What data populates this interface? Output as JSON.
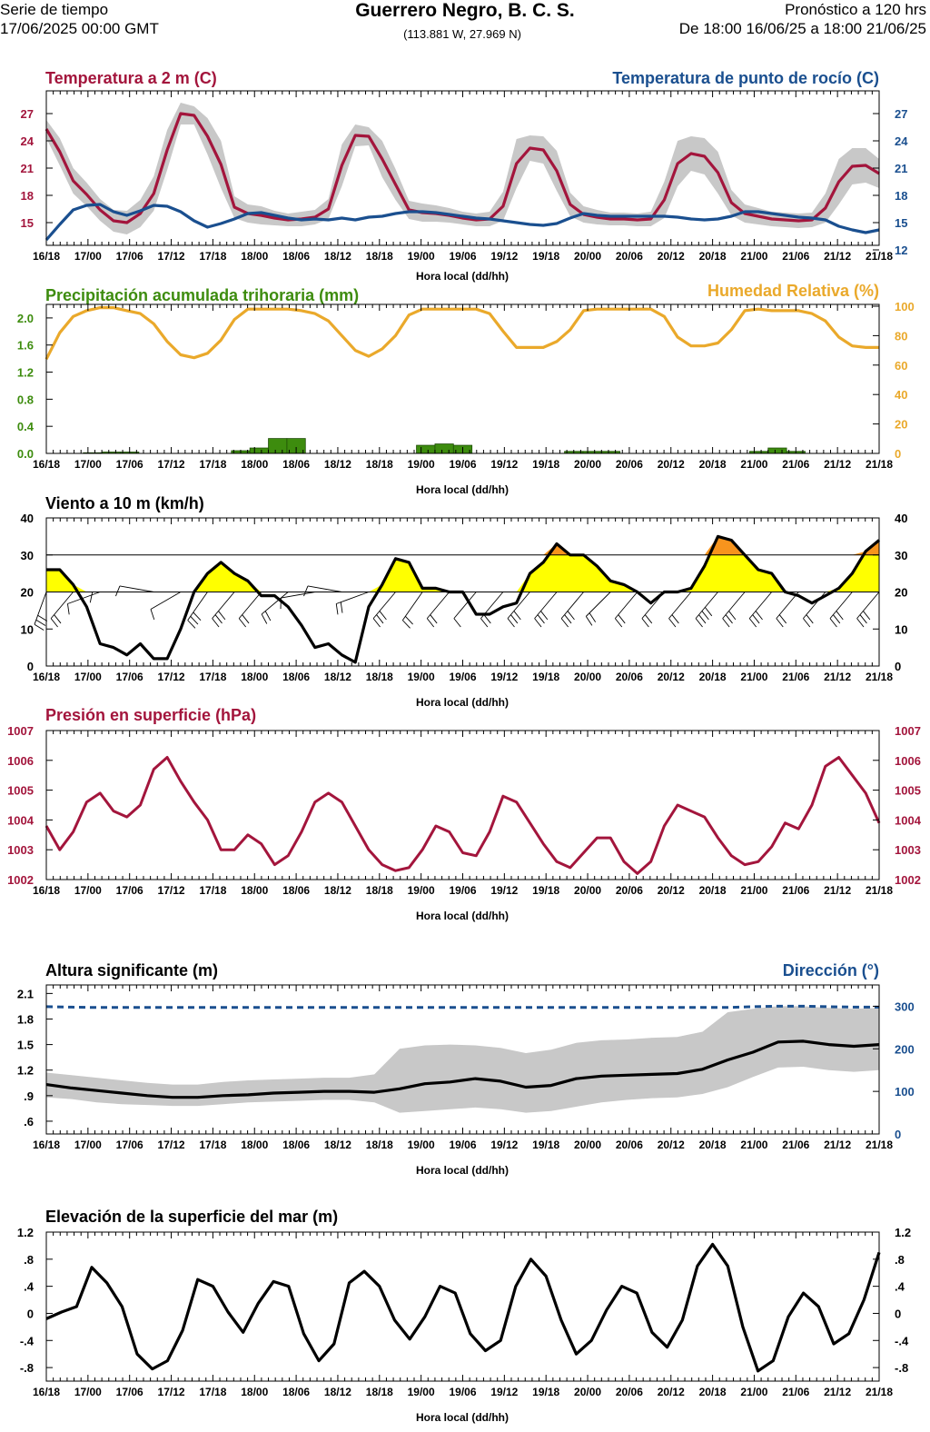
{
  "header": {
    "left_line1": "Serie de tiempo",
    "left_line2": "17/06/2025 00:00 GMT",
    "title": "Guerrero Negro, B. C. S.",
    "subtitle": "(113.881 W, 27.969 N)",
    "right_line1": "Pronóstico a 120 hrs",
    "right_line2": "De 18:00 16/06/25 a 18:00 21/06/25"
  },
  "colors": {
    "temperature": "#a3153c",
    "dewpoint": "#1a4f8f",
    "precip": "#3d8c0e",
    "humidity": "#eaa92b",
    "wind_fill": "#ffff00",
    "wind_fill_high": "#f7941d",
    "band": "#c8c8c8",
    "black": "#000000"
  },
  "chart_data": [
    {
      "type": "line",
      "title": "Temperatura a 2 m (C)",
      "title_right": "Temperatura de punto de rocío (C)",
      "xlabel": "Hora local (dd/hh)",
      "x_ticks": [
        "16/18",
        "17/00",
        "17/06",
        "17/12",
        "17/18",
        "18/00",
        "18/06",
        "18/12",
        "18/18",
        "19/00",
        "19/06",
        "19/12",
        "19/18",
        "20/00",
        "20/06",
        "20/12",
        "20/18",
        "21/00",
        "21/06",
        "21/12",
        "21/18"
      ],
      "ylim": [
        12.5,
        29.5
      ],
      "yticks_left": [
        15,
        18,
        21,
        24,
        27
      ],
      "yticks_right": [
        12,
        15,
        18,
        21,
        24,
        27
      ],
      "series": [
        {
          "name": "Temperatura a 2 m (C)",
          "values": [
            25.3,
            22.8,
            19.6,
            18.1,
            16.4,
            15.2,
            15.0,
            16.0,
            18.2,
            23.0,
            27.0,
            26.8,
            24.5,
            21.4,
            16.7,
            16.0,
            15.8,
            15.5,
            15.3,
            15.4,
            15.6,
            16.5,
            21.3,
            24.6,
            24.5,
            22.0,
            19.2,
            16.4,
            16.1,
            16.0,
            15.8,
            15.5,
            15.3,
            15.4,
            16.8,
            21.5,
            23.2,
            23.0,
            20.7,
            17.0,
            15.9,
            15.6,
            15.4,
            15.4,
            15.3,
            15.4,
            17.5,
            21.5,
            22.6,
            22.3,
            20.5,
            17.2,
            16.0,
            15.7,
            15.4,
            15.3,
            15.2,
            15.3,
            16.6,
            19.5,
            21.2,
            21.3,
            20.4
          ],
          "band_low": [
            24.3,
            21.3,
            18.2,
            16.8,
            15.2,
            14.0,
            13.7,
            14.5,
            16.3,
            20.8,
            25.8,
            25.8,
            22.5,
            18.8,
            15.5,
            15.0,
            14.8,
            14.7,
            14.6,
            14.6,
            14.8,
            15.4,
            19.0,
            23.4,
            23.5,
            20.0,
            17.5,
            15.4,
            15.1,
            15.1,
            15.0,
            14.8,
            14.6,
            14.6,
            15.2,
            18.8,
            21.8,
            21.5,
            18.5,
            15.7,
            15.0,
            14.8,
            14.7,
            14.7,
            14.6,
            14.6,
            15.5,
            19.0,
            20.7,
            20.3,
            18.2,
            15.8,
            15.0,
            14.8,
            14.6,
            14.5,
            14.4,
            14.5,
            15.0,
            17.0,
            19.2,
            19.4,
            18.8
          ],
          "band_high": [
            26.3,
            24.3,
            21.0,
            19.4,
            17.6,
            16.4,
            16.3,
            17.5,
            20.1,
            25.2,
            28.2,
            27.8,
            26.5,
            24.0,
            17.9,
            17.0,
            16.8,
            16.3,
            16.0,
            16.2,
            16.4,
            17.6,
            23.6,
            25.8,
            25.5,
            24.0,
            20.9,
            17.4,
            17.1,
            16.9,
            16.6,
            16.2,
            16.0,
            16.2,
            18.4,
            24.2,
            24.6,
            24.5,
            22.9,
            18.3,
            16.8,
            16.4,
            16.1,
            16.1,
            16.0,
            16.2,
            19.5,
            24.0,
            24.5,
            24.3,
            22.8,
            18.6,
            17.0,
            16.6,
            16.2,
            16.1,
            16.0,
            16.1,
            18.2,
            22.0,
            23.2,
            23.2,
            22.0
          ]
        },
        {
          "name": "Temperatura de punto de rocío (C)",
          "values": [
            13.1,
            14.8,
            16.4,
            16.9,
            17.0,
            16.2,
            15.8,
            16.3,
            16.9,
            16.8,
            16.2,
            15.2,
            14.5,
            14.9,
            15.4,
            16.0,
            16.1,
            15.8,
            15.5,
            15.3,
            15.4,
            15.3,
            15.5,
            15.3,
            15.6,
            15.7,
            16.0,
            16.2,
            16.2,
            16.1,
            15.9,
            15.7,
            15.5,
            15.4,
            15.2,
            15.0,
            14.8,
            14.7,
            14.9,
            15.5,
            16.0,
            15.8,
            15.7,
            15.7,
            15.7,
            15.7,
            15.7,
            15.6,
            15.4,
            15.3,
            15.4,
            15.7,
            16.2,
            16.2,
            16.0,
            15.8,
            15.6,
            15.5,
            15.3,
            14.6,
            14.2,
            13.9,
            14.2
          ]
        }
      ]
    },
    {
      "type": "bar",
      "title": "Precipitación acumulada trihoraria (mm)",
      "title_right": "Humedad Relativa (%)",
      "xlabel": "Hora local (dd/hh)",
      "x_ticks": [
        "16/18",
        "17/00",
        "17/06",
        "17/12",
        "17/18",
        "18/00",
        "18/06",
        "18/12",
        "18/18",
        "19/00",
        "19/06",
        "19/12",
        "19/18",
        "20/00",
        "20/06",
        "20/12",
        "20/18",
        "21/00",
        "21/06",
        "21/12",
        "21/18"
      ],
      "ylim": [
        0,
        2.2
      ],
      "yticks_left": [
        "0.0",
        "0.4",
        "0.8",
        "1.2",
        "1.6",
        "2.0"
      ],
      "yticks_right": [
        "0",
        "20",
        "40",
        "60",
        "80",
        "100"
      ],
      "precip_values": [
        0,
        0,
        0.01,
        0.02,
        0.02,
        0,
        0,
        0,
        0,
        0,
        0.04,
        0.08,
        0.22,
        0.22,
        0,
        0,
        0,
        0,
        0,
        0,
        0.12,
        0.14,
        0.12,
        0,
        0,
        0,
        0,
        0,
        0.03,
        0.03,
        0.03,
        0,
        0,
        0,
        0,
        0,
        0,
        0,
        0.03,
        0.08,
        0.03,
        0,
        0,
        0,
        0
      ],
      "humidity_values": [
        64,
        82,
        93,
        97,
        99,
        99,
        97,
        95,
        88,
        76,
        67,
        65,
        68,
        77,
        91,
        98,
        98,
        98,
        98,
        97,
        95,
        90,
        80,
        70,
        66,
        71,
        80,
        94,
        98,
        98,
        98,
        98,
        98,
        95,
        83,
        72,
        72,
        72,
        76,
        84,
        97,
        98,
        98,
        98,
        98,
        98,
        93,
        79,
        73,
        73,
        75,
        84,
        97,
        98,
        97,
        97,
        97,
        95,
        90,
        79,
        73,
        72,
        72
      ]
    },
    {
      "type": "area",
      "title": "Viento a 10 m (km/h)",
      "xlabel": "Hora local (dd/hh)",
      "x_ticks": [
        "16/18",
        "17/00",
        "17/06",
        "17/12",
        "17/18",
        "18/00",
        "18/06",
        "18/12",
        "18/18",
        "19/00",
        "19/06",
        "19/12",
        "19/18",
        "20/00",
        "20/06",
        "20/12",
        "20/18",
        "21/00",
        "21/06",
        "21/12",
        "21/18"
      ],
      "ylim": [
        0,
        40
      ],
      "yticks": [
        "0",
        "10",
        "20",
        "30",
        "40"
      ],
      "fill_threshold": 20,
      "high_threshold": 30,
      "values": [
        26,
        26,
        22,
        16,
        6,
        5,
        3,
        6,
        2,
        2,
        10,
        20,
        25,
        28,
        25,
        23,
        19,
        19,
        16,
        11,
        5,
        6,
        3,
        1,
        16,
        22,
        29,
        28,
        21,
        21,
        20,
        20,
        14,
        14,
        16,
        17,
        25,
        28,
        33,
        30,
        30,
        27,
        23,
        22,
        20,
        17,
        20,
        20,
        21,
        27,
        35,
        34,
        30,
        26,
        25,
        20,
        19,
        17,
        19,
        21,
        25,
        31,
        34
      ],
      "barb_dir_deg": [
        340,
        330,
        320,
        300,
        290,
        280,
        270,
        260,
        260,
        270,
        300,
        320,
        325,
        330,
        320,
        320,
        320,
        310,
        310,
        300,
        280,
        270,
        260,
        265,
        290,
        310,
        320,
        325,
        325,
        320,
        320,
        320,
        320,
        320,
        320,
        320,
        320,
        320,
        320,
        320,
        320,
        315,
        315,
        320,
        320,
        320,
        320,
        320,
        320,
        320,
        320,
        320,
        320,
        320,
        320,
        320,
        320,
        320,
        320,
        320,
        320,
        320,
        320
      ]
    },
    {
      "type": "line",
      "title": "Presión en superficie (hPa)",
      "xlabel": "Hora local (dd/hh)",
      "x_ticks": [
        "16/18",
        "17/00",
        "17/06",
        "17/12",
        "17/18",
        "18/00",
        "18/06",
        "18/12",
        "18/18",
        "19/00",
        "19/06",
        "19/12",
        "19/18",
        "20/00",
        "20/06",
        "20/12",
        "20/18",
        "21/00",
        "21/06",
        "21/12",
        "21/18"
      ],
      "ylim": [
        1002,
        1007
      ],
      "yticks": [
        "1002",
        "1003",
        "1004",
        "1005",
        "1006",
        "1007"
      ],
      "values": [
        1003.8,
        1003.0,
        1003.6,
        1004.6,
        1004.9,
        1004.3,
        1004.1,
        1004.5,
        1005.7,
        1006.1,
        1005.3,
        1004.6,
        1004.0,
        1003.0,
        1003.0,
        1003.5,
        1003.2,
        1002.5,
        1002.8,
        1003.6,
        1004.6,
        1004.9,
        1004.6,
        1003.8,
        1003.0,
        1002.5,
        1002.3,
        1002.4,
        1003.0,
        1003.8,
        1003.6,
        1002.9,
        1002.8,
        1003.6,
        1004.8,
        1004.6,
        1003.9,
        1003.2,
        1002.6,
        1002.4,
        1002.9,
        1003.4,
        1003.4,
        1002.6,
        1002.2,
        1002.6,
        1003.8,
        1004.5,
        1004.3,
        1004.1,
        1003.4,
        1002.8,
        1002.5,
        1002.6,
        1003.1,
        1003.9,
        1003.7,
        1004.5,
        1005.8,
        1006.1,
        1005.5,
        1004.9,
        1003.9
      ]
    },
    {
      "type": "line",
      "title": "Altura significante (m)",
      "title_right": "Dirección (°)",
      "xlabel": "Hora local (dd/hh)",
      "x_ticks": [
        "16/18",
        "17/00",
        "17/06",
        "17/12",
        "17/18",
        "18/00",
        "18/06",
        "18/12",
        "18/18",
        "19/00",
        "19/06",
        "19/12",
        "19/18",
        "20/00",
        "20/06",
        "20/12",
        "20/18",
        "21/00",
        "21/06",
        "21/12",
        "21/18"
      ],
      "ylim": [
        0.45,
        2.2
      ],
      "yticks_left": [
        ".6",
        ".9",
        "1.2",
        "1.5",
        "1.8",
        "2.1"
      ],
      "yticks_right": [
        "0",
        "100",
        "200",
        "300"
      ],
      "direction_ylim": [
        0,
        350
      ],
      "height_values": [
        1.03,
        0.99,
        0.96,
        0.93,
        0.9,
        0.88,
        0.88,
        0.9,
        0.91,
        0.93,
        0.94,
        0.95,
        0.95,
        0.94,
        0.98,
        1.04,
        1.06,
        1.1,
        1.07,
        1.0,
        1.02,
        1.1,
        1.13,
        1.14,
        1.15,
        1.16,
        1.21,
        1.32,
        1.41,
        1.53,
        1.54,
        1.5,
        1.48,
        1.5
      ],
      "band_low": [
        0.88,
        0.86,
        0.82,
        0.8,
        0.79,
        0.78,
        0.78,
        0.8,
        0.82,
        0.83,
        0.84,
        0.85,
        0.85,
        0.82,
        0.7,
        0.72,
        0.74,
        0.76,
        0.74,
        0.7,
        0.72,
        0.77,
        0.82,
        0.85,
        0.87,
        0.88,
        0.92,
        1.0,
        1.12,
        1.23,
        1.24,
        1.2,
        1.18,
        1.2
      ],
      "band_high": [
        1.17,
        1.14,
        1.11,
        1.08,
        1.05,
        1.03,
        1.03,
        1.06,
        1.08,
        1.09,
        1.1,
        1.11,
        1.11,
        1.15,
        1.45,
        1.49,
        1.5,
        1.49,
        1.46,
        1.4,
        1.44,
        1.52,
        1.55,
        1.56,
        1.58,
        1.59,
        1.65,
        1.88,
        1.92,
        1.95,
        1.95,
        1.93,
        1.92,
        1.93
      ],
      "direction_values": [
        299,
        298,
        297,
        297,
        297,
        297,
        297,
        297,
        297,
        297,
        297,
        297,
        297,
        297,
        297,
        297,
        297,
        297,
        297,
        297,
        297,
        297,
        297,
        297,
        297,
        297,
        297,
        297,
        299,
        300,
        300,
        299,
        298,
        298
      ]
    },
    {
      "type": "line",
      "title": "Elevación de la superficie del mar (m)",
      "xlabel": "Hora local (dd/hh)",
      "x_ticks": [
        "16/18",
        "17/00",
        "17/06",
        "17/12",
        "17/18",
        "18/00",
        "18/06",
        "18/12",
        "18/18",
        "19/00",
        "19/06",
        "19/12",
        "19/18",
        "20/00",
        "20/06",
        "20/12",
        "20/18",
        "21/00",
        "21/06",
        "21/12",
        "21/18"
      ],
      "ylim": [
        -1.0,
        1.2
      ],
      "yticks": [
        "-.8",
        "-.4",
        "0",
        ".4",
        ".8",
        "1.2"
      ],
      "values": [
        -0.08,
        0.02,
        0.1,
        0.68,
        0.45,
        0.1,
        -0.6,
        -0.82,
        -0.7,
        -0.25,
        0.5,
        0.4,
        0.02,
        -0.28,
        0.15,
        0.47,
        0.4,
        -0.3,
        -0.7,
        -0.45,
        0.45,
        0.62,
        0.4,
        -0.1,
        -0.38,
        -0.05,
        0.4,
        0.3,
        -0.3,
        -0.55,
        -0.4,
        0.4,
        0.8,
        0.55,
        -0.1,
        -0.6,
        -0.4,
        0.05,
        0.4,
        0.3,
        -0.28,
        -0.5,
        -0.1,
        0.7,
        1.02,
        0.7,
        -0.2,
        -0.85,
        -0.7,
        -0.05,
        0.3,
        0.1,
        -0.45,
        -0.3,
        0.2,
        0.9
      ]
    }
  ]
}
